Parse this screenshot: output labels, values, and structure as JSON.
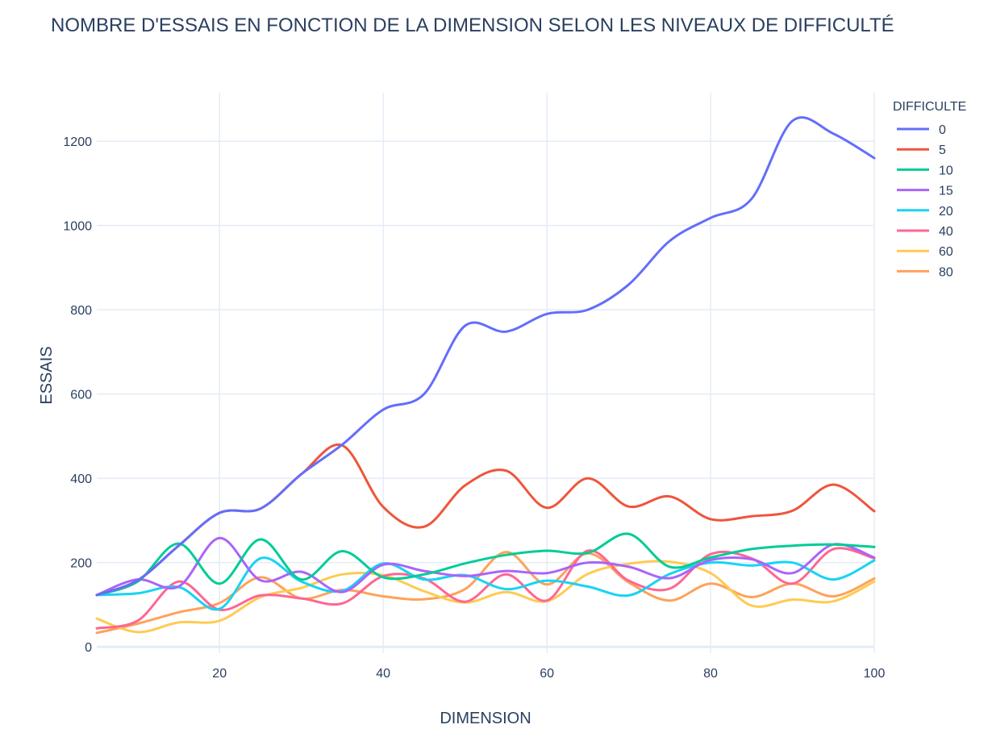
{
  "chart_data": {
    "type": "line",
    "title": "NOMBRE D'ESSAIS EN FONCTION DE LA DIMENSION SELON LES NIVEAUX DE DIFFICULTÉ",
    "xlabel": "DIMENSION",
    "ylabel": "ESSAIS",
    "xlim": [
      5,
      100
    ],
    "ylim": [
      -15,
      1315
    ],
    "xticks": [
      20,
      40,
      60,
      80,
      100
    ],
    "yticks": [
      0,
      200,
      400,
      600,
      800,
      1000,
      1200
    ],
    "grid": true,
    "legend_title": "DIFFICULTE",
    "legend_position": "right",
    "x": [
      5,
      10,
      15,
      20,
      25,
      30,
      35,
      40,
      45,
      50,
      55,
      60,
      65,
      70,
      75,
      80,
      85,
      90,
      95,
      100
    ],
    "series": [
      {
        "name": "0",
        "color": "#636efa",
        "values": [
          123,
          158,
          240,
          318,
          328,
          410,
          480,
          563,
          600,
          762,
          748,
          790,
          800,
          860,
          963,
          1018,
          1063,
          1248,
          1218,
          1160
        ]
      },
      {
        "name": "5",
        "color": "#ef553b",
        "values": [
          123,
          158,
          240,
          318,
          328,
          410,
          478,
          332,
          285,
          383,
          418,
          330,
          400,
          333,
          357,
          303,
          310,
          323,
          385,
          322
        ]
      },
      {
        "name": "10",
        "color": "#00cc96",
        "values": [
          123,
          155,
          245,
          150,
          255,
          160,
          227,
          165,
          172,
          198,
          218,
          228,
          223,
          268,
          190,
          212,
          232,
          240,
          243,
          237
        ]
      },
      {
        "name": "15",
        "color": "#ab63fa",
        "values": [
          123,
          160,
          143,
          258,
          158,
          178,
          130,
          195,
          180,
          168,
          180,
          175,
          200,
          190,
          163,
          206,
          208,
          175,
          243,
          212
        ]
      },
      {
        "name": "20",
        "color": "#19d3f3",
        "values": [
          123,
          127,
          142,
          90,
          210,
          155,
          133,
          198,
          160,
          170,
          137,
          157,
          143,
          122,
          173,
          200,
          193,
          200,
          160,
          205
        ]
      },
      {
        "name": "40",
        "color": "#ff6692",
        "values": [
          44,
          62,
          155,
          88,
          122,
          115,
          103,
          168,
          162,
          107,
          172,
          110,
          228,
          157,
          138,
          220,
          210,
          150,
          232,
          210
        ]
      },
      {
        "name": "60",
        "color": "#fecb52",
        "values": [
          67,
          35,
          58,
          62,
          118,
          140,
          172,
          170,
          132,
          105,
          130,
          108,
          173,
          197,
          202,
          175,
          98,
          112,
          108,
          155
        ]
      },
      {
        "name": "80",
        "color": "#ffa15a",
        "values": [
          33,
          55,
          82,
          104,
          165,
          115,
          135,
          120,
          113,
          137,
          225,
          148,
          222,
          153,
          110,
          150,
          118,
          150,
          120,
          162
        ]
      }
    ]
  }
}
